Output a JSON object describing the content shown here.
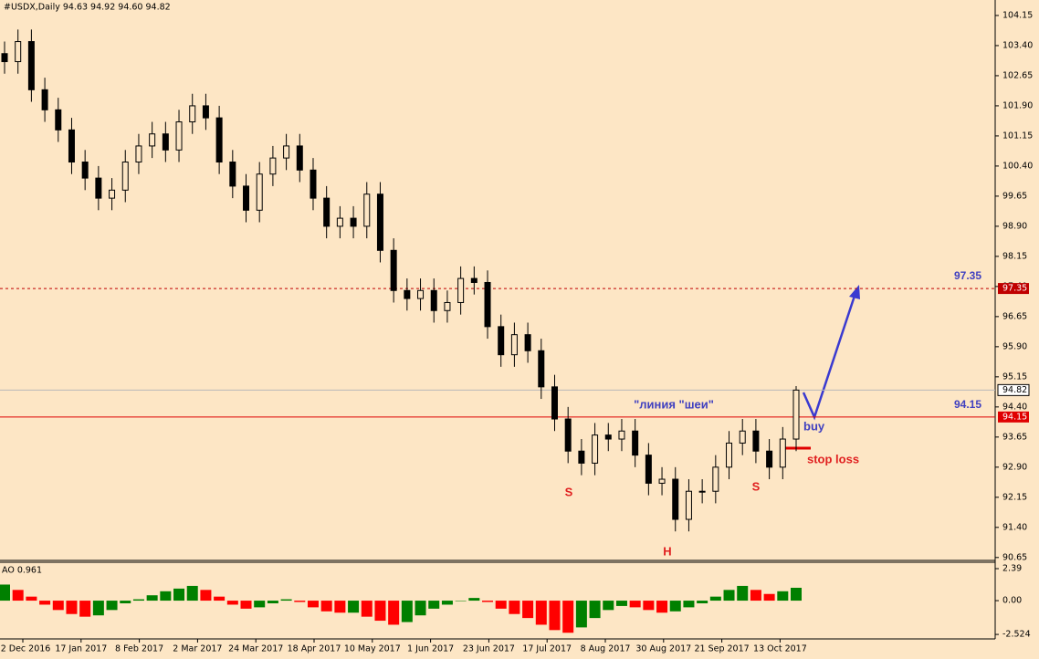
{
  "chart_data": {
    "type": "candlestick",
    "title": "#USDX,Daily  94.63 94.92 94.60 94.82",
    "x_labels": [
      "22 Dec 2016",
      "17 Jan 2017",
      "8 Feb 2017",
      "2 Mar 2017",
      "24 Mar 2017",
      "18 Apr 2017",
      "10 May 2017",
      "1 Jun 2017",
      "23 Jun 2017",
      "17 Jul 2017",
      "8 Aug 2017",
      "30 Aug 2017",
      "21 Sep 2017",
      "13 Oct 2017"
    ],
    "ylim": [
      90.6,
      104.49
    ],
    "yticks": [
      {
        "value": 104.15,
        "label": "104.15"
      },
      {
        "value": 103.4,
        "label": "103.40"
      },
      {
        "value": 102.65,
        "label": "102.65"
      },
      {
        "value": 101.9,
        "label": "101.90"
      },
      {
        "value": 101.15,
        "label": "101.15"
      },
      {
        "value": 100.4,
        "label": "100.40"
      },
      {
        "value": 99.65,
        "label": "99.65"
      },
      {
        "value": 98.9,
        "label": "98.90"
      },
      {
        "value": 98.15,
        "label": "98.15"
      },
      {
        "value": 97.4,
        "label": "97.40"
      },
      {
        "value": 96.65,
        "label": "96.65"
      },
      {
        "value": 95.9,
        "label": "95.90"
      },
      {
        "value": 95.15,
        "label": "95.15"
      },
      {
        "value": 94.4,
        "label": "94.40"
      },
      {
        "value": 93.65,
        "label": "93.65"
      },
      {
        "value": 92.9,
        "label": "92.90"
      },
      {
        "value": 92.15,
        "label": "92.15"
      },
      {
        "value": 91.4,
        "label": "91.40"
      },
      {
        "value": 90.65,
        "label": "90.65"
      }
    ],
    "open": [
      103.2,
      103.0,
      103.5,
      102.3,
      101.8,
      101.3,
      100.5,
      100.1,
      99.6,
      99.8,
      100.5,
      100.9,
      101.2,
      100.8,
      101.5,
      101.9,
      101.6,
      100.5,
      99.9,
      99.3,
      100.2,
      100.6,
      100.9,
      100.3,
      99.6,
      98.9,
      99.1,
      98.9,
      99.7,
      98.3,
      97.3,
      97.1,
      97.3,
      96.8,
      97.0,
      97.6,
      97.5,
      96.4,
      95.7,
      96.2,
      95.8,
      94.9,
      94.1,
      93.3,
      93.0,
      93.7,
      93.6,
      93.8,
      93.2,
      92.5,
      92.6,
      91.6,
      92.3,
      92.3,
      92.9,
      93.5,
      93.8,
      93.3,
      92.9,
      93.6
    ],
    "high": [
      103.5,
      103.8,
      103.8,
      102.6,
      102.1,
      101.6,
      100.8,
      100.4,
      100.1,
      100.8,
      101.2,
      101.5,
      101.5,
      101.8,
      102.2,
      102.2,
      101.9,
      100.8,
      100.2,
      100.5,
      100.9,
      101.2,
      101.2,
      100.6,
      99.9,
      99.4,
      99.4,
      100.0,
      100.0,
      98.6,
      97.6,
      97.6,
      97.6,
      97.3,
      97.9,
      97.9,
      97.8,
      96.7,
      96.5,
      96.5,
      96.1,
      95.2,
      94.4,
      93.6,
      94.0,
      94.0,
      94.1,
      94.1,
      93.5,
      92.9,
      92.9,
      92.6,
      92.6,
      93.2,
      93.8,
      94.1,
      94.1,
      93.6,
      93.9,
      94.92
    ],
    "low": [
      102.7,
      102.7,
      102.0,
      101.5,
      101.0,
      100.2,
      99.8,
      99.3,
      99.3,
      99.5,
      100.2,
      100.6,
      100.5,
      100.5,
      101.2,
      101.3,
      100.2,
      99.6,
      99.0,
      99.0,
      99.9,
      100.3,
      100.0,
      99.3,
      98.6,
      98.6,
      98.6,
      98.6,
      98.0,
      97.0,
      96.8,
      96.8,
      96.5,
      96.5,
      96.7,
      97.2,
      96.1,
      95.4,
      95.4,
      95.5,
      94.6,
      93.8,
      93.0,
      92.7,
      92.7,
      93.3,
      93.3,
      92.9,
      92.2,
      92.2,
      91.3,
      91.3,
      92.0,
      92.0,
      92.6,
      93.2,
      93.0,
      92.6,
      92.6,
      93.3
    ],
    "close": [
      103.0,
      103.5,
      102.3,
      101.8,
      101.3,
      100.5,
      100.1,
      99.6,
      99.8,
      100.5,
      100.9,
      101.2,
      100.8,
      101.5,
      101.9,
      101.6,
      100.5,
      99.9,
      99.3,
      100.2,
      100.6,
      100.9,
      100.3,
      99.6,
      98.9,
      99.1,
      98.9,
      99.7,
      98.3,
      97.3,
      97.1,
      97.3,
      96.8,
      97.0,
      97.6,
      97.5,
      96.4,
      95.7,
      96.2,
      95.8,
      94.9,
      94.1,
      93.3,
      93.0,
      93.7,
      93.6,
      93.8,
      93.2,
      92.5,
      92.6,
      91.6,
      92.3,
      92.3,
      92.9,
      93.5,
      93.8,
      93.3,
      92.9,
      93.6,
      94.82
    ],
    "last_price": {
      "value": 94.82,
      "label": "94.82"
    },
    "levels": [
      {
        "value": 97.35,
        "label": "97.35",
        "color": "#c00000",
        "dashed": true,
        "text_color": "#4040c0"
      },
      {
        "value": 94.15,
        "label": "94.15",
        "color": "#e00000",
        "dashed": false,
        "text_color": "#4040c0"
      }
    ],
    "annotations": {
      "neckline": "\"линия \"шеи\"",
      "buy": "buy",
      "stop_loss": "stop loss",
      "left_shoulder": "S",
      "head": "H",
      "right_shoulder": "S"
    },
    "indicator": {
      "type": "histogram",
      "label": "AO 0.961",
      "up_color": "#008000",
      "down_color": "#ff0000",
      "ylim": [
        -2.86,
        2.8
      ],
      "yticks": [
        2.39,
        {
          "value": 0,
          "label": "0.00"
        },
        -2.524
      ],
      "values": [
        1.2,
        0.8,
        0.3,
        -0.3,
        -0.7,
        -1.0,
        -1.2,
        -1.1,
        -0.7,
        -0.2,
        0.1,
        0.4,
        0.7,
        0.9,
        1.1,
        0.8,
        0.3,
        -0.3,
        -0.6,
        -0.5,
        -0.2,
        0.1,
        -0.1,
        -0.5,
        -0.8,
        -0.9,
        -0.9,
        -1.2,
        -1.5,
        -1.8,
        -1.6,
        -1.1,
        -0.6,
        -0.3,
        0.0,
        0.2,
        -0.1,
        -0.6,
        -1.0,
        -1.3,
        -1.8,
        -2.2,
        -2.4,
        -2.0,
        -1.3,
        -0.7,
        -0.4,
        -0.5,
        -0.7,
        -0.9,
        -0.8,
        -0.5,
        -0.2,
        0.3,
        0.8,
        1.1,
        0.8,
        0.5,
        0.7,
        0.961
      ]
    }
  }
}
